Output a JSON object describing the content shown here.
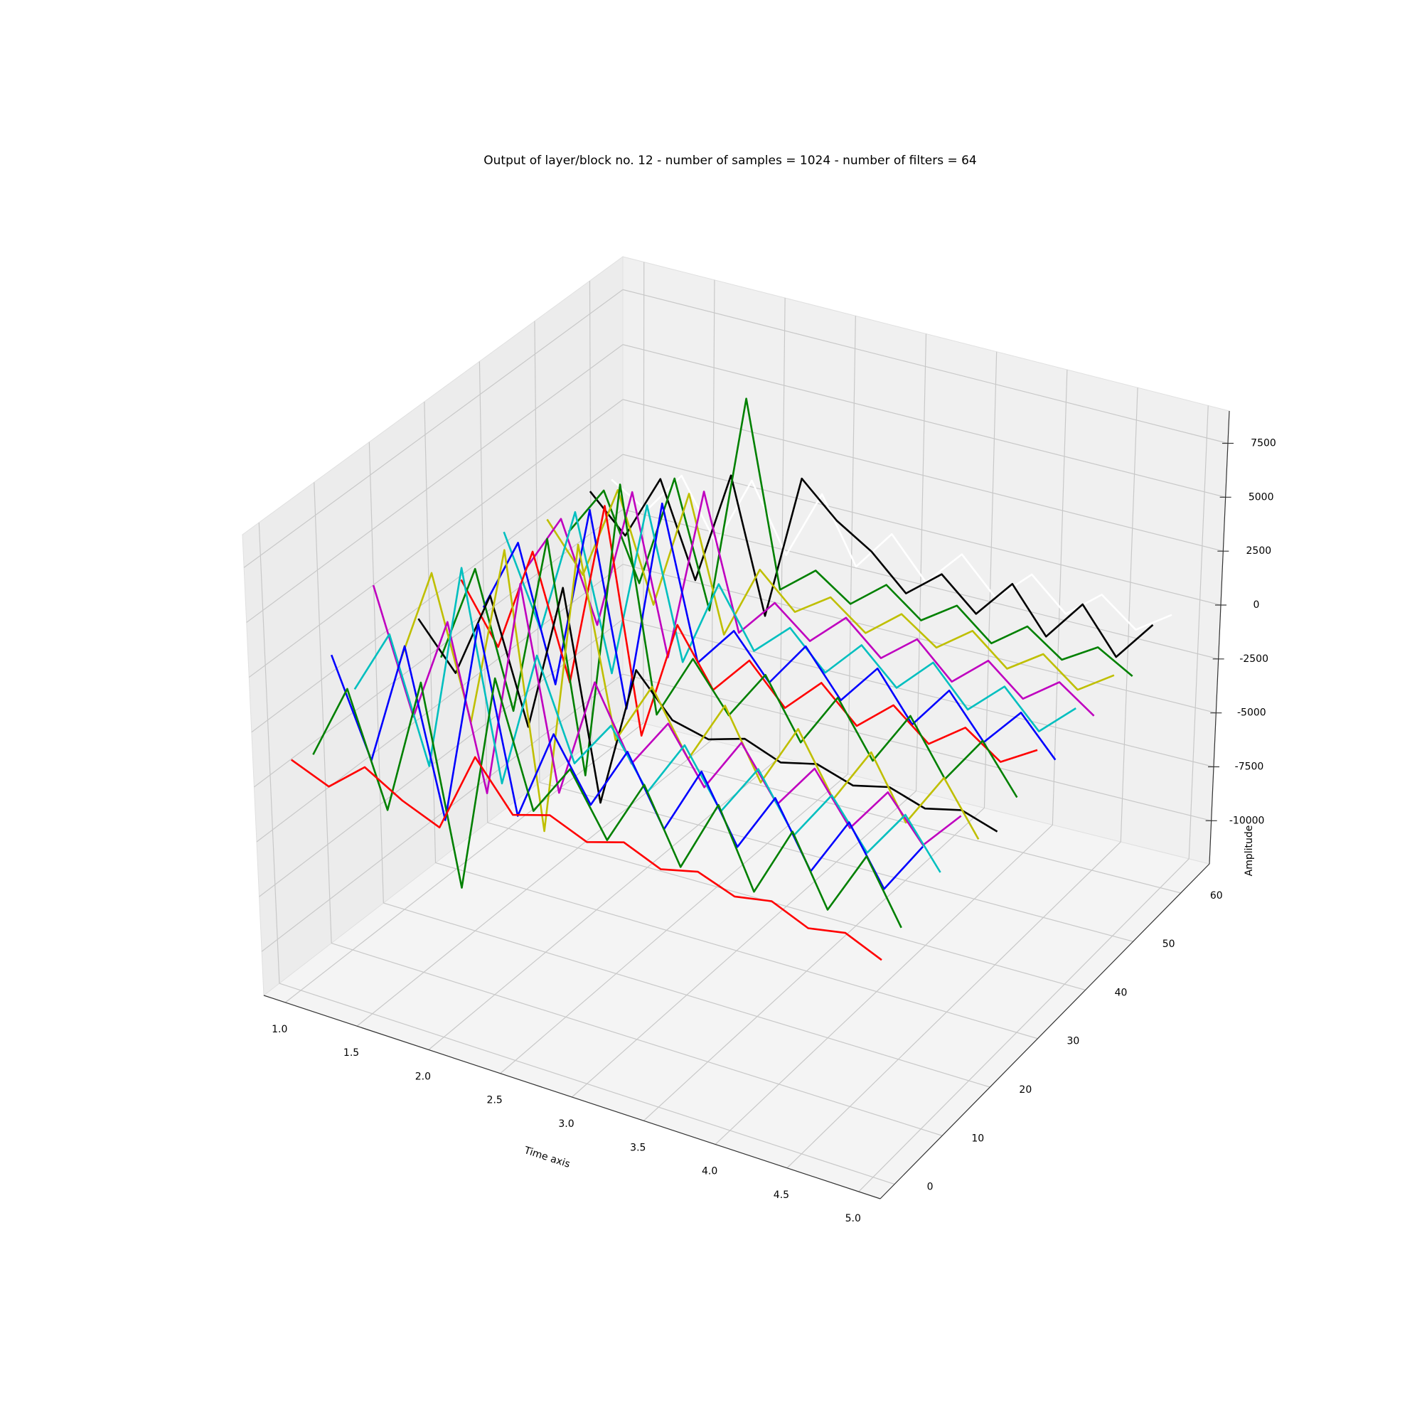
{
  "chart_data": {
    "type": "line3d",
    "title": "Output of layer/block no. 12 - number of samples = 1024 - number of filters = 64",
    "xlabel": "Time axis",
    "zlabel": "Amplitude",
    "x": [
      1.0,
      1.25,
      1.5,
      1.75,
      2.0,
      2.25,
      2.5,
      2.75,
      3.0,
      3.25,
      3.5,
      3.75,
      4.0,
      4.25,
      4.5,
      4.75,
      5.0
    ],
    "xlim": [
      0.85,
      5.15
    ],
    "xticks": [
      {
        "value": 1,
        "label": "1.0"
      },
      1.5,
      {
        "value": 2,
        "label": "2.0"
      },
      2.5,
      {
        "value": 3,
        "label": "3.0"
      },
      3.5,
      {
        "value": 4,
        "label": "4.0"
      },
      4.5,
      {
        "value": 5,
        "label": "5.0"
      }
    ],
    "ylim": [
      -3,
      66
    ],
    "yticks": [
      0,
      10,
      20,
      30,
      40,
      50,
      60
    ],
    "zlim": [
      -12000,
      9000
    ],
    "zticks": [
      -10000,
      -7500,
      -5000,
      -2500,
      0,
      2500,
      5000,
      7500
    ],
    "grid": true,
    "series": [
      {
        "z": 0,
        "color": "#ff0000",
        "values": [
          -1500,
          -2200,
          -800,
          -1800,
          -2500,
          1200,
          -900,
          -400,
          -1100,
          -600,
          -1300,
          -900,
          -1500,
          -1200,
          -1900,
          -1600,
          -2300
        ]
      },
      {
        "z": 4,
        "color": "#008000",
        "values": [
          -2000,
          1500,
          -3500,
          2800,
          -6000,
          4000,
          -1500,
          900,
          -1800,
          1200,
          -2000,
          1300,
          -2100,
          1100,
          -1900,
          1000,
          -1700
        ]
      },
      {
        "z": 8,
        "color": "#0000ff",
        "values": [
          1800,
          -2500,
          3200,
          -4200,
          5200,
          -3000,
          1200,
          -1500,
          1400,
          -1600,
          1500,
          -1400,
          1300,
          -1500,
          1200,
          -1300,
          1100
        ]
      },
      {
        "z": 12,
        "color": "#00bfbf",
        "values": [
          -500,
          2500,
          -3000,
          6500,
          -2800,
          3500,
          -900,
          1300,
          -1200,
          1400,
          -1100,
          1300,
          -1200,
          1100,
          -1000,
          1200,
          -900
        ]
      },
      {
        "z": 16,
        "color": "#bf00bf",
        "values": [
          3500,
          -2000,
          2800,
          -4500,
          5500,
          -3500,
          2000,
          -1200,
          1100,
          -1300,
          1200,
          -1100,
          1000,
          -1200,
          900,
          -1000,
          800
        ]
      },
      {
        "z": 20,
        "color": "#bfbf00",
        "values": [
          -1000,
          3800,
          -2500,
          5800,
          -6500,
          7000,
          -1400,
          1500,
          -1300,
          1600,
          -1400,
          1500,
          -1200,
          1400,
          -1300,
          1200,
          -1100
        ]
      },
      {
        "z": 24,
        "color": "#000000",
        "values": [
          500,
          -1500,
          2500,
          -3000,
          3800,
          -5500,
          1000,
          -800,
          -1200,
          -700,
          -1300,
          -900,
          -1400,
          -1000,
          -1500,
          -1100,
          -1600
        ]
      },
      {
        "z": 28,
        "color": "#008000",
        "values": [
          -2000,
          2500,
          -3500,
          4800,
          -5500,
          8200,
          -1800,
          1200,
          -900,
          1400,
          -1200,
          1300,
          -1100,
          1400,
          -1000,
          1200,
          -900
        ]
      },
      {
        "z": 32,
        "color": "#ff0000",
        "values": [
          800,
          -1800,
          3000,
          -2500,
          6000,
          -4000,
          1500,
          -1000,
          800,
          -900,
          700,
          -800,
          600,
          -700,
          500,
          -600,
          400
        ]
      },
      {
        "z": 36,
        "color": "#0000ff",
        "values": [
          -1200,
          2200,
          -3800,
          4600,
          -4000,
          5800,
          -1000,
          900,
          -1000,
          1100,
          -900,
          1000,
          -1100,
          900,
          -1000,
          800,
          -900
        ]
      },
      {
        "z": 40,
        "color": "#00bfbf",
        "values": [
          1500,
          -2500,
          3300,
          -3600,
          4500,
          -2200,
          1800,
          -800,
          700,
          -900,
          800,
          -700,
          900,
          -800,
          700,
          -900,
          600
        ]
      },
      {
        "z": 44,
        "color": "#bf00bf",
        "values": [
          -900,
          1800,
          -2600,
          3900,
          -3200,
          4800,
          -1200,
          600,
          -700,
          800,
          -600,
          700,
          -800,
          600,
          -700,
          500,
          -600
        ]
      },
      {
        "z": 48,
        "color": "#bfbf00",
        "values": [
          600,
          -1500,
          2800,
          -2000,
          3500,
          -2500,
          900,
          -600,
          500,
          -700,
          600,
          -500,
          700,
          -600,
          500,
          -700,
          400
        ]
      },
      {
        "z": 52,
        "color": "#008000",
        "values": [
          -700,
          1600,
          -2200,
          3000,
          -2600,
          7500,
          -800,
          500,
          -600,
          700,
          -500,
          600,
          -700,
          500,
          -600,
          400,
          -500
        ]
      },
      {
        "z": 56,
        "color": "#000000",
        "values": [
          400,
          -1200,
          1800,
          -2400,
          2800,
          -3200,
          3500,
          2000,
          1000,
          -500,
          800,
          -600,
          1200,
          -800,
          1100,
          -900,
          1000
        ]
      },
      {
        "z": 60,
        "color": "#ffffff",
        "values": [
          200,
          -800,
          1200,
          -1500,
          1800,
          -1200,
          2000,
          -900,
          1000,
          -800,
          900,
          -700,
          800,
          -600,
          700,
          -500,
          600
        ]
      }
    ]
  }
}
